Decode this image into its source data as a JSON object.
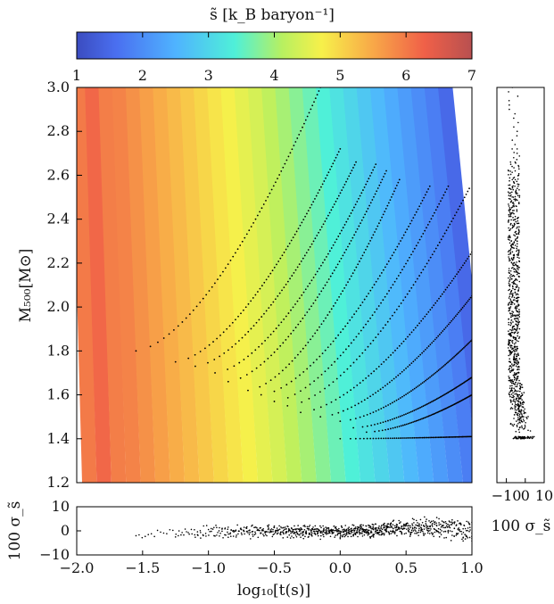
{
  "chart_data": [
    {
      "type": "heatmap",
      "name": "main-panel",
      "xlabel": "log₁₀[t(s)]",
      "ylabel": "M₅₀₀[M⊙]",
      "xlim": [
        -2.0,
        1.0
      ],
      "ylim": [
        1.2,
        3.0
      ],
      "xticks": [
        "−2.0",
        "−1.5",
        "−1.0",
        "−0.5",
        "0.0",
        "0.5",
        "1.0"
      ],
      "yticks": [
        "1.2",
        "1.4",
        "1.6",
        "1.8",
        "2.0",
        "2.2",
        "2.4",
        "2.6",
        "2.8",
        "3.0"
      ],
      "colorbar": {
        "label": "s̃ [k_B baryon⁻¹]",
        "range": [
          1,
          7
        ],
        "ticks": [
          "1",
          "2",
          "3",
          "4",
          "5",
          "6",
          "7"
        ],
        "colormap": "jet-like"
      },
      "contour_columns_s": [
        6.0,
        6.2,
        5.95,
        5.9,
        5.75,
        5.6,
        5.45,
        5.3,
        5.15,
        5.0,
        4.85,
        4.7,
        4.55,
        4.4,
        4.2,
        4.0,
        3.8,
        3.6,
        3.4,
        3.2,
        3.0,
        2.8,
        2.6,
        2.4,
        2.2,
        2.0,
        1.8,
        1.5
      ],
      "tracks_note": "black dotted evolution tracks",
      "tracks": [
        {
          "t0": -1.55,
          "M0": 1.8,
          "t1": -0.15,
          "M1": 3.0
        },
        {
          "t0": -1.25,
          "M0": 1.75,
          "t1": 0.0,
          "M1": 2.72
        },
        {
          "t0": -1.1,
          "M0": 1.73,
          "t1": 0.12,
          "M1": 2.66
        },
        {
          "t0": -0.95,
          "M0": 1.7,
          "t1": 0.27,
          "M1": 2.65
        },
        {
          "t0": -0.85,
          "M0": 1.66,
          "t1": 0.35,
          "M1": 2.62
        },
        {
          "t0": -0.7,
          "M0": 1.62,
          "t1": 0.45,
          "M1": 2.58
        },
        {
          "t0": -0.6,
          "M0": 1.6,
          "t1": 0.68,
          "M1": 2.55
        },
        {
          "t0": -0.5,
          "M0": 1.57,
          "t1": 0.82,
          "M1": 2.55
        },
        {
          "t0": -0.4,
          "M0": 1.55,
          "t1": 0.98,
          "M1": 2.54
        },
        {
          "t0": -0.3,
          "M0": 1.52,
          "t1": 1.0,
          "M1": 2.25
        },
        {
          "t0": -0.15,
          "M0": 1.5,
          "t1": 1.0,
          "M1": 2.05
        },
        {
          "t0": 0.0,
          "M0": 1.48,
          "t1": 1.0,
          "M1": 1.85
        },
        {
          "t0": 0.1,
          "M0": 1.45,
          "t1": 1.0,
          "M1": 1.68
        },
        {
          "t0": 0.2,
          "M0": 1.43,
          "t1": 1.0,
          "M1": 1.6
        },
        {
          "t0": 0.0,
          "M0": 1.4,
          "t1": 1.0,
          "M1": 1.41
        }
      ]
    },
    {
      "type": "scatter",
      "name": "bottom-residual-panel",
      "ylabel": "100 σ_s̃",
      "xlim": [
        -2.0,
        1.0
      ],
      "ylim": [
        -10,
        10
      ],
      "yticks": [
        "−10",
        "0",
        "10"
      ]
    },
    {
      "type": "scatter",
      "name": "right-residual-panel",
      "xlabel": "100 σ_s̃",
      "xlim": [
        -15,
        10
      ],
      "ylim": [
        1.2,
        3.0
      ],
      "xticks": [
        "−10",
        "0",
        "10"
      ]
    }
  ]
}
